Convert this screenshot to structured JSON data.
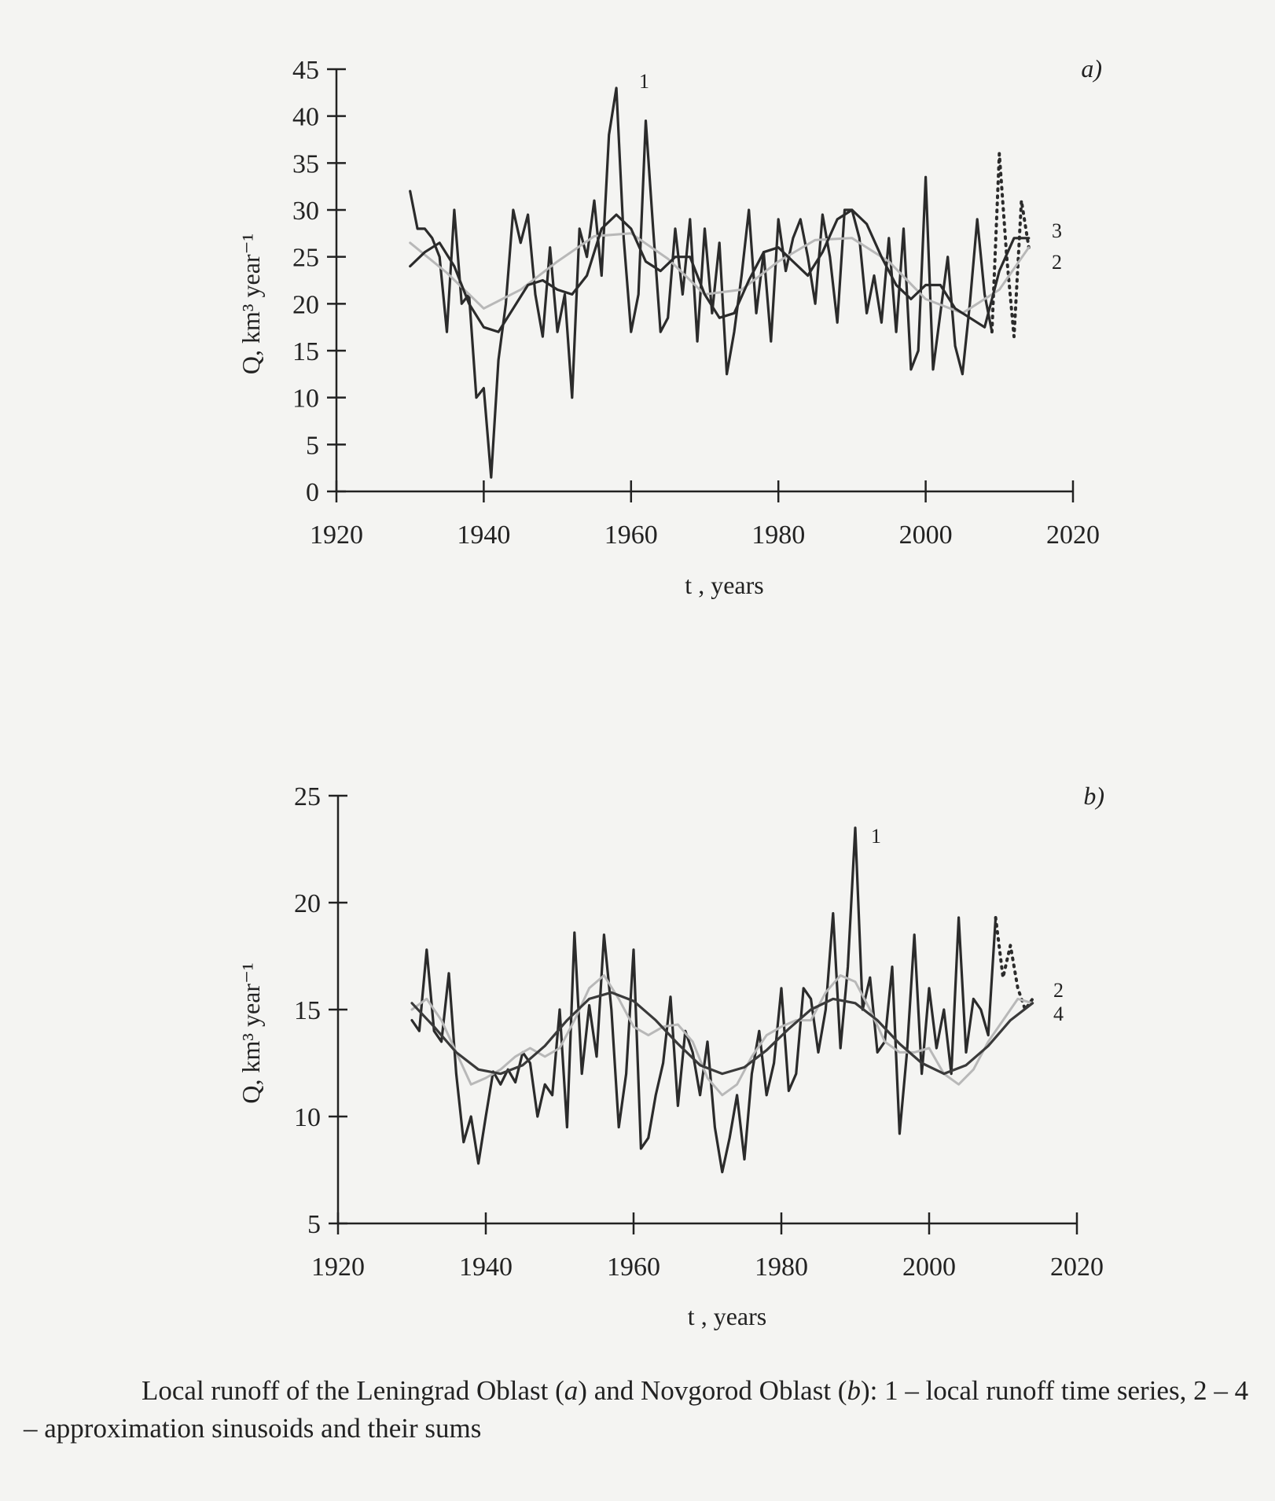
{
  "chart_data": [
    {
      "type": "line",
      "panel_label": "a)",
      "xlabel": "t , years",
      "ylabel": "Q, km³ year⁻¹",
      "xlim": [
        1920,
        2020
      ],
      "ylim": [
        0,
        45
      ],
      "x_ticks": [
        1920,
        1940,
        1960,
        1980,
        2000,
        2020
      ],
      "y_ticks": [
        0,
        5,
        10,
        15,
        20,
        25,
        30,
        35,
        40,
        45
      ],
      "grid": false,
      "series": [
        {
          "name": "1",
          "style": "solid",
          "color": "#2b2b2b",
          "x": [
            1930,
            1931,
            1932,
            1933,
            1934,
            1935,
            1936,
            1937,
            1938,
            1939,
            1940,
            1941,
            1942,
            1943,
            1944,
            1945,
            1946,
            1947,
            1948,
            1949,
            1950,
            1951,
            1952,
            1953,
            1954,
            1955,
            1956,
            1957,
            1958,
            1959,
            1960,
            1961,
            1962,
            1963,
            1964,
            1965,
            1966,
            1967,
            1968,
            1969,
            1970,
            1971,
            1972,
            1973,
            1974,
            1975,
            1976,
            1977,
            1978,
            1979,
            1980,
            1981,
            1982,
            1983,
            1984,
            1985,
            1986,
            1987,
            1988,
            1989,
            1990,
            1991,
            1992,
            1993,
            1994,
            1995,
            1996,
            1997,
            1998,
            1999,
            2000,
            2001,
            2002,
            2003,
            2004,
            2005,
            2006,
            2007,
            2008,
            2009
          ],
          "values": [
            32,
            28,
            28,
            27,
            25,
            17,
            30,
            20,
            21,
            10,
            11,
            1.5,
            14,
            20,
            30,
            26.5,
            29.5,
            21,
            16.5,
            26,
            17,
            21,
            10,
            28,
            25,
            31,
            23,
            38,
            43,
            27,
            17,
            21,
            39.5,
            28,
            17,
            18.5,
            28,
            21,
            29,
            16,
            28,
            19,
            26.5,
            12.5,
            17,
            23,
            30,
            19,
            25.5,
            16,
            29,
            23.5,
            27,
            29,
            25,
            20,
            29.5,
            25,
            18,
            30,
            30,
            27,
            19,
            23,
            18,
            27,
            17,
            28,
            13,
            15,
            33.5,
            13,
            19,
            25,
            15.5,
            12.5,
            20,
            29,
            21,
            17
          ]
        },
        {
          "name": "1 (dotted continuation)",
          "style": "dotted",
          "color": "#2b2b2b",
          "x": [
            2009,
            2010,
            2011,
            2012,
            2013,
            2014
          ],
          "values": [
            17,
            36,
            25,
            16.5,
            31,
            26
          ]
        },
        {
          "name": "2",
          "style": "solid",
          "color": "#b8b8b8",
          "x": [
            1930,
            1935,
            1940,
            1945,
            1950,
            1955,
            1960,
            1965,
            1970,
            1975,
            1980,
            1985,
            1990,
            1995,
            2000,
            2005,
            2010,
            2014
          ],
          "values": [
            26.5,
            23.3,
            19.5,
            21.5,
            24.5,
            27.2,
            27.5,
            24.8,
            21,
            21.5,
            24.5,
            26.8,
            27,
            24.5,
            20.5,
            19,
            21.5,
            26
          ]
        },
        {
          "name": "3",
          "style": "solid",
          "color": "#2b2b2b",
          "x": [
            1930,
            1932,
            1934,
            1936,
            1938,
            1940,
            1942,
            1944,
            1946,
            1948,
            1950,
            1952,
            1954,
            1956,
            1958,
            1960,
            1962,
            1964,
            1966,
            1968,
            1970,
            1972,
            1974,
            1976,
            1978,
            1980,
            1982,
            1984,
            1986,
            1988,
            1990,
            1992,
            1994,
            1996,
            1998,
            2000,
            2002,
            2004,
            2006,
            2008,
            2010,
            2012,
            2014
          ],
          "values": [
            24,
            25.5,
            26.5,
            24,
            20,
            17.5,
            17,
            19.5,
            22,
            22.5,
            21.5,
            21,
            23,
            28,
            29.5,
            28,
            24.5,
            23.5,
            25,
            25,
            21,
            18.5,
            19,
            22.5,
            25.5,
            26,
            24.5,
            23,
            25.5,
            29,
            30,
            28.5,
            25,
            22,
            20.5,
            22,
            22,
            19.5,
            18.5,
            17.5,
            23.5,
            27,
            27
          ]
        }
      ],
      "annotations": [
        "1",
        "2",
        "3"
      ]
    },
    {
      "type": "line",
      "panel_label": "b)",
      "xlabel": "t , years",
      "ylabel": "Q, km³ year⁻¹",
      "xlim": [
        1920,
        2020
      ],
      "ylim": [
        5,
        25
      ],
      "x_ticks": [
        1920,
        1940,
        1960,
        1980,
        2000,
        2020
      ],
      "y_ticks": [
        5,
        10,
        15,
        20,
        25
      ],
      "grid": false,
      "series": [
        {
          "name": "1",
          "style": "solid",
          "color": "#2b2b2b",
          "x": [
            1930,
            1931,
            1932,
            1933,
            1934,
            1935,
            1936,
            1937,
            1938,
            1939,
            1940,
            1941,
            1942,
            1943,
            1944,
            1945,
            1946,
            1947,
            1948,
            1949,
            1950,
            1951,
            1952,
            1953,
            1954,
            1955,
            1956,
            1957,
            1958,
            1959,
            1960,
            1961,
            1962,
            1963,
            1964,
            1965,
            1966,
            1967,
            1968,
            1969,
            1970,
            1971,
            1972,
            1973,
            1974,
            1975,
            1976,
            1977,
            1978,
            1979,
            1980,
            1981,
            1982,
            1983,
            1984,
            1985,
            1986,
            1987,
            1988,
            1989,
            1990,
            1991,
            1992,
            1993,
            1994,
            1995,
            1996,
            1997,
            1998,
            1999,
            2000,
            2001,
            2002,
            2003,
            2004,
            2005,
            2006,
            2007,
            2008,
            2009
          ],
          "values": [
            14.5,
            14,
            17.8,
            14,
            13.5,
            16.7,
            12,
            8.8,
            10,
            7.8,
            10,
            12.1,
            11.5,
            12.2,
            11.6,
            13,
            12.5,
            10,
            11.5,
            11,
            15,
            9.5,
            18.6,
            12,
            15.2,
            12.8,
            18.5,
            15,
            9.5,
            12,
            17.8,
            8.5,
            9,
            11,
            12.5,
            15.6,
            10.5,
            14,
            13,
            11,
            13.5,
            9.5,
            7.4,
            9,
            11,
            8,
            12,
            14,
            11,
            12.5,
            16,
            11.2,
            12,
            16,
            15.5,
            13,
            15,
            19.5,
            13.2,
            17,
            23.5,
            15,
            16.5,
            13,
            13.5,
            17,
            9.2,
            13,
            18.5,
            12,
            16,
            13.2,
            15,
            12,
            19.3,
            13,
            15.5,
            15,
            13.8,
            19.3
          ]
        },
        {
          "name": "1 (dotted continuation)",
          "style": "dotted",
          "color": "#2b2b2b",
          "x": [
            2009,
            2010,
            2011,
            2012,
            2013,
            2014
          ],
          "values": [
            19.3,
            16.5,
            18,
            16,
            15,
            15.5
          ]
        },
        {
          "name": "2",
          "style": "solid",
          "color": "#b8b8b8",
          "x": [
            1930,
            1932,
            1934,
            1936,
            1938,
            1940,
            1942,
            1944,
            1946,
            1948,
            1950,
            1952,
            1954,
            1956,
            1958,
            1960,
            1962,
            1964,
            1966,
            1968,
            1970,
            1972,
            1974,
            1976,
            1978,
            1980,
            1982,
            1984,
            1986,
            1988,
            1990,
            1992,
            1994,
            1996,
            1998,
            2000,
            2002,
            2004,
            2006,
            2008,
            2010,
            2012,
            2014
          ],
          "values": [
            15,
            15.5,
            14.5,
            13,
            11.5,
            11.8,
            12.2,
            12.8,
            13.2,
            12.8,
            13.2,
            14.5,
            16,
            16.6,
            15.5,
            14.2,
            13.8,
            14.2,
            14.3,
            13.5,
            11.8,
            11,
            11.5,
            12.8,
            13.8,
            14.2,
            14.5,
            14.5,
            15.8,
            16.6,
            16.3,
            15,
            13.5,
            13,
            13,
            13.2,
            12,
            11.5,
            12.2,
            13.5,
            14.5,
            15.5,
            15.3
          ]
        },
        {
          "name": "4",
          "style": "solid",
          "color": "#3a3a3a",
          "x": [
            1930,
            1933,
            1936,
            1939,
            1942,
            1945,
            1948,
            1951,
            1954,
            1957,
            1960,
            1963,
            1966,
            1969,
            1972,
            1975,
            1978,
            1981,
            1984,
            1987,
            1990,
            1993,
            1996,
            1999,
            2002,
            2005,
            2008,
            2011,
            2014
          ],
          "values": [
            15.3,
            14.2,
            13,
            12.2,
            12,
            12.4,
            13.3,
            14.5,
            15.5,
            15.8,
            15.4,
            14.5,
            13.4,
            12.4,
            12,
            12.3,
            13.1,
            14.1,
            15,
            15.5,
            15.3,
            14.5,
            13.4,
            12.5,
            12,
            12.4,
            13.3,
            14.5,
            15.3
          ]
        }
      ],
      "annotations": [
        "1",
        "2",
        "4"
      ]
    }
  ],
  "caption": {
    "part1": "Local runoff of the Leningrad Oblast (",
    "a": "a",
    "part2": ") and Novgorod Oblast (",
    "b": "b",
    "part3": "): 1 – local runoff time series, 2 – 4 – approximation sinusoids and their sums"
  }
}
